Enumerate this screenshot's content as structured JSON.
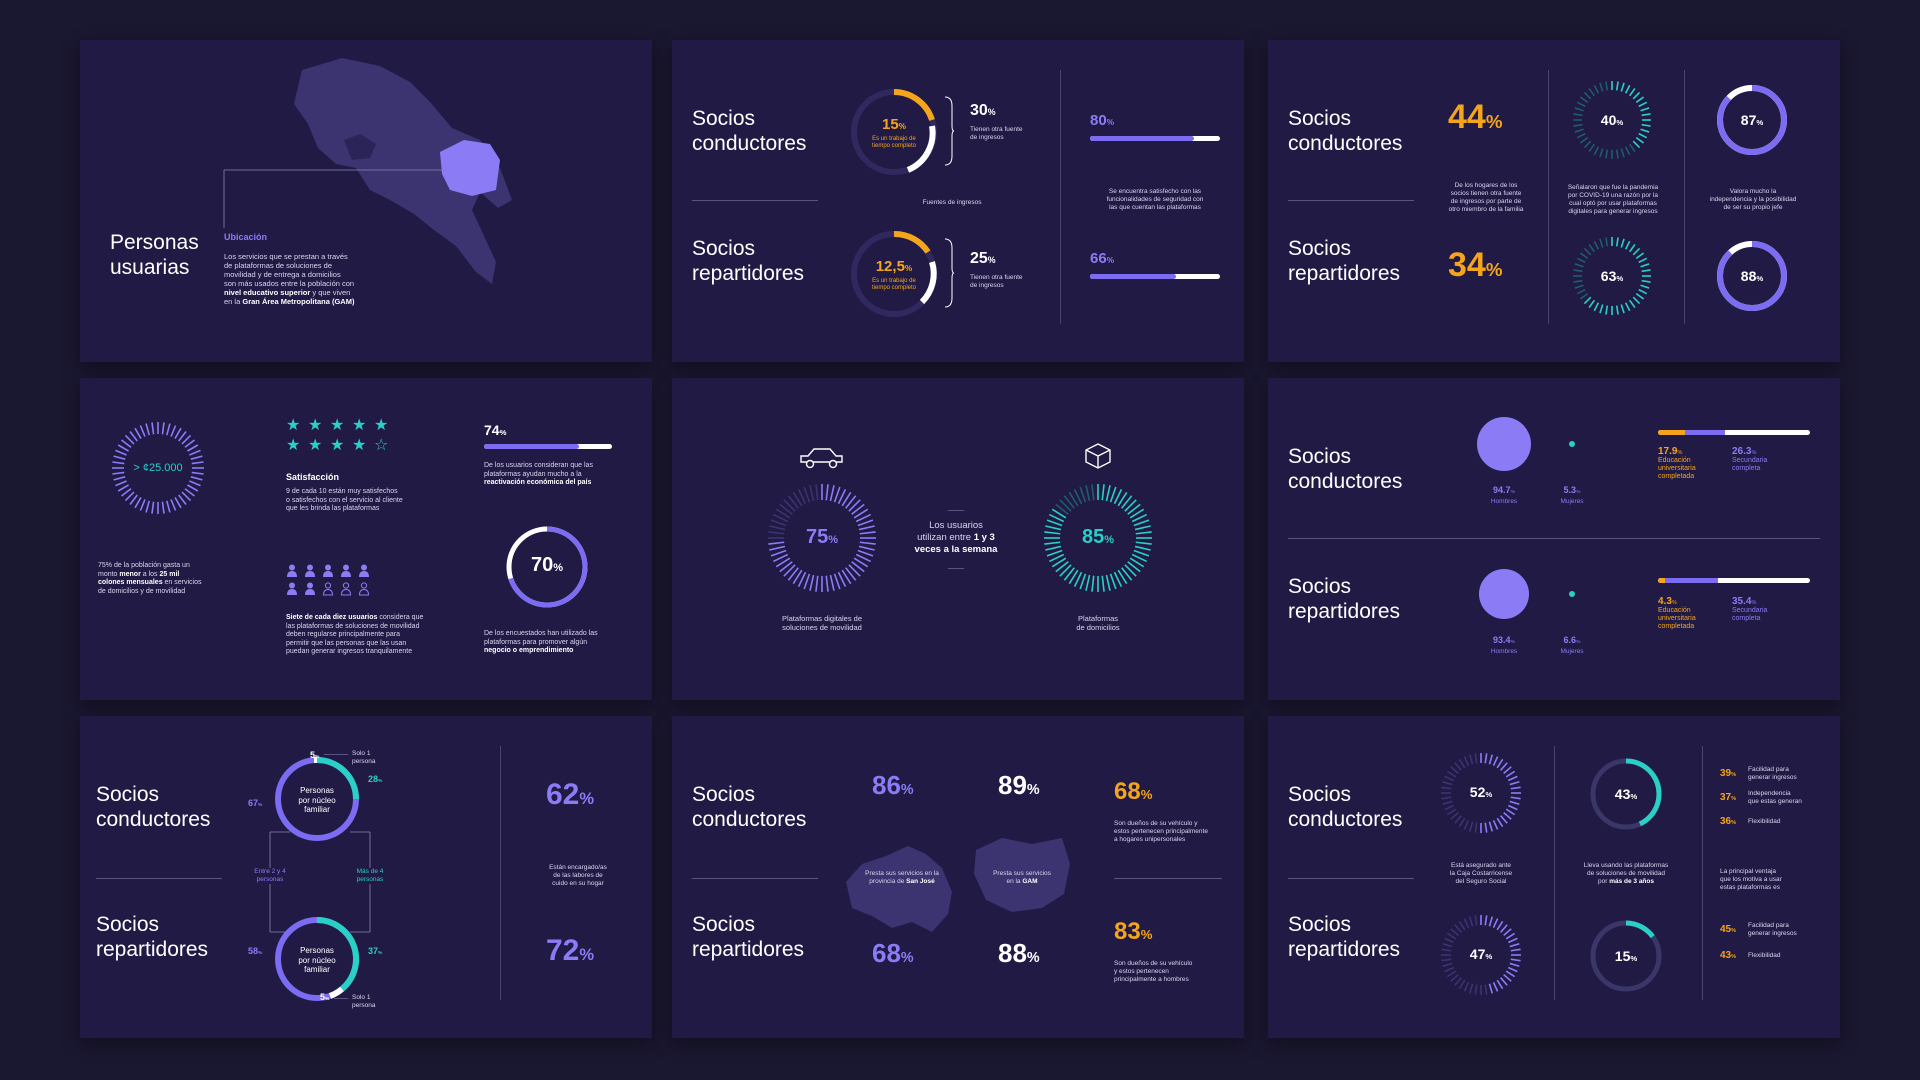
{
  "s1": {
    "title_l1": "Personas",
    "title_l2": "usuarias",
    "ubicacion_label": "Ubicación",
    "desc_1": "Los servicios que se prestan a través",
    "desc_2": "de plataformas de soluciones de",
    "desc_3": "movilidad y de entrega a domicilios",
    "desc_4": "son más usados entre la población con",
    "desc_5_b": "nivel educativo superior",
    "desc_5_r": " y que viven",
    "desc_6_r": "en la ",
    "desc_6_b": "Gran Área Metropolitana (GAM)"
  },
  "s2": {
    "row1_l1": "Socios",
    "row1_l2": "conductores",
    "row2_l1": "Socios",
    "row2_l2": "repartidores",
    "r1_ring_val": "15",
    "r1_ring_unit": "%",
    "r1_ring_sub1": "Es un trabajo de",
    "r1_ring_sub2": "tiempo completo",
    "r1_side_val": "30",
    "r1_side_unit": "%",
    "r1_side_sub1": "Tienen otra fuente",
    "r1_side_sub2": "de ingresos",
    "r2_ring_val": "12,5",
    "r2_ring_unit": "%",
    "r2_ring_sub1": "Es un trabajo de",
    "r2_ring_sub2": "tiempo completo",
    "r2_side_val": "25",
    "r2_side_unit": "%",
    "r2_side_sub1": "Tienen otra fuente",
    "r2_side_sub2": "de ingresos",
    "mid_caption": "Fuentes de ingresos",
    "bar1_val": "80",
    "bar1_unit": "%",
    "bar1_fraction": 0.8,
    "bar_caption_1": "Se encuentra satisfecho con las",
    "bar_caption_2": "funcionalidades de seguridad con",
    "bar_caption_3": "las que cuentan las plataformas",
    "bar2_val": "66",
    "bar2_unit": "%",
    "bar2_fraction": 0.66
  },
  "s3": {
    "row1_l1": "Socios",
    "row1_l2": "conductores",
    "row2_l1": "Socios",
    "row2_l2": "repartidores",
    "big1_val": "44",
    "big1_unit": "%",
    "big2_val": "34",
    "big2_unit": "%",
    "cap_a_1": "De los hogares de los",
    "cap_a_2": "socios tienen otra fuente",
    "cap_a_3": "de ingresos por parte de",
    "cap_a_4": "otro miembro de la familia",
    "tick1_val": "40",
    "tick1_unit": "%",
    "tick2_val": "63",
    "tick2_unit": "%",
    "cap_b_1": "Señalaron que fue la pandemia",
    "cap_b_2": "por COVID-19 una razón por la",
    "cap_b_3": "cual optó por usar plataformas",
    "cap_b_4": "digitales para generar ingresos",
    "ring1_val": "87",
    "ring1_unit": "%",
    "ring1_fraction": 0.87,
    "ring2_val": "88",
    "ring2_unit": "%",
    "ring2_fraction": 0.88,
    "cap_c_1": "Valora mucho la",
    "cap_c_2": "independencia y la posibilidad",
    "cap_c_3": "de ser su propio jefe"
  },
  "s4": {
    "tick_center": "> ¢25.000",
    "cap_a_1": "75% de la población gasta un",
    "cap_a_2_r": "monto ",
    "cap_a_2_b1": "menor",
    "cap_a_2_r2": " a los ",
    "cap_a_2_b2": "25 mil",
    "cap_a_3_b": "colones mensuales",
    "cap_a_3_r": " en servicios",
    "cap_a_4": "de domicilios y de movilidad",
    "stars_filled": 9,
    "stars_total": 10,
    "sat_label": "Satisfacción",
    "sat_1": "9 de cada 10 están muy satisfechos",
    "sat_2": "o satisfechos con el servicio al cliente",
    "sat_3": "que les brinda las plataformas",
    "people_filled": 7,
    "people_total": 10,
    "reg_1_b": "Siete de cada diez usuarios",
    "reg_1_r": " considera que",
    "reg_2": "las plataformas de soluciones de movilidad",
    "reg_3": "deben regularse principalmente para",
    "reg_4": "permitir que las personas que las usan",
    "reg_5": "puedan generar ingresos tranquilamente",
    "bar_val": "74",
    "bar_unit": "%",
    "bar_fraction": 0.74,
    "bar_cap_1": "De los usuarios consideran que las",
    "bar_cap_2": "plataformas ayudan mucho a la",
    "bar_cap_3_b": "reactivación económica del país",
    "ring_val": "70",
    "ring_unit": "%",
    "ring_fraction": 0.7,
    "ring_cap_1": "De los encuestados han utilizado las",
    "ring_cap_2": "plataformas para promover algún",
    "ring_cap_3_b": "negocio o emprendimiento"
  },
  "s5": {
    "left_val": "75",
    "left_unit": "%",
    "left_fraction": 0.75,
    "left_cap_1": "Plataformas digitales de",
    "left_cap_2": "soluciones de movilidad",
    "mid_1": "Los usuarios",
    "mid_2_r": "utilizan entre ",
    "mid_2_b": "1 y 3",
    "mid_3_b": "veces a la semana",
    "right_val": "85",
    "right_unit": "%",
    "right_fraction": 0.85,
    "right_cap_1": "Plataformas",
    "right_cap_2": "de domicilios"
  },
  "s6": {
    "row1_l1": "Socios",
    "row1_l2": "conductores",
    "row2_l1": "Socios",
    "row2_l2": "repartidores",
    "r1_h_val": "94.7",
    "r1_h_unit": "%",
    "r1_h_lbl": "Hombres",
    "r1_m_val": "5.3",
    "r1_m_unit": "%",
    "r1_m_lbl": "Mujeres",
    "r1_edu_val": "17.9",
    "r1_edu_unit": "%",
    "r1_edu_fraction": 0.179,
    "r1_edu_1": "Educación",
    "r1_edu_2": "universitaria",
    "r1_edu_3": "completada",
    "r1_sec_val": "26.3",
    "r1_sec_unit": "%",
    "r1_sec_fraction": 0.263,
    "r1_sec_1": "Secundaria",
    "r1_sec_2": "completa",
    "r2_h_val": "93.4",
    "r2_h_unit": "%",
    "r2_h_lbl": "Hombres",
    "r2_m_val": "6.6",
    "r2_m_unit": "%",
    "r2_m_lbl": "Mujeres",
    "r2_edu_val": "4.3",
    "r2_edu_unit": "%",
    "r2_edu_fraction": 0.043,
    "r2_edu_1": "Educación",
    "r2_edu_2": "universitaria",
    "r2_edu_3": "completada",
    "r2_sec_val": "35.4",
    "r2_sec_unit": "%",
    "r2_sec_fraction": 0.354,
    "r2_sec_1": "Secundaria",
    "r2_sec_2": "completa"
  },
  "s7": {
    "row1_l1": "Socios",
    "row1_l2": "conductores",
    "row2_l1": "Socios",
    "row2_l2": "repartidores",
    "ring_label_1": "Personas",
    "ring_label_2": "por núcleo",
    "ring_label_3": "familiar",
    "top_solo_val": "5",
    "top_solo_unit": "%",
    "top_solo_1": "Solo 1",
    "top_solo_2": "persona",
    "top_2a4_val": "67",
    "top_2a4_unit": "%",
    "top_4mas_val": "28",
    "top_4mas_unit": "%",
    "mid_left_1": "Entre 2 y 4",
    "mid_left_2": "personas",
    "mid_right_1": "Más de 4",
    "mid_right_2": "personas",
    "bot_2a4_val": "58",
    "bot_2a4_unit": "%",
    "bot_4mas_val": "37",
    "bot_4mas_unit": "%",
    "bot_solo_val": "5",
    "bot_solo_unit": "%",
    "bot_solo_1": "Solo 1",
    "bot_solo_2": "persona",
    "big1_val": "62",
    "big1_unit": "%",
    "big2_val": "72",
    "big2_unit": "%",
    "cap_1": "Están encargado/as",
    "cap_2": "de las labores de",
    "cap_3": "cuido en su hogar"
  },
  "s8": {
    "row1_l1": "Socios",
    "row1_l2": "conductores",
    "row2_l1": "Socios",
    "row2_l2": "repartidores",
    "a1_val": "86",
    "a1_unit": "%",
    "b1_val": "89",
    "b1_unit": "%",
    "a2_val": "68",
    "a2_unit": "%",
    "b2_val": "88",
    "b2_unit": "%",
    "map_a_1": "Presta sus servicios en la",
    "map_a_2_r": "provincia de ",
    "map_a_2_b": "San José",
    "map_b_1": "Presta sus servicios",
    "map_b_2_r": "en la ",
    "map_b_2_b": "GAM",
    "y1_val": "68",
    "y1_unit": "%",
    "y1_cap_1": "Son dueños de su vehículo y",
    "y1_cap_2": "estos pertenecen principalmente",
    "y1_cap_3": "a hogares unipersonales",
    "y2_val": "83",
    "y2_unit": "%",
    "y2_cap_1": "Son dueños de su vehículo",
    "y2_cap_2": "y estos pertenecen",
    "y2_cap_3": "principalmente a hombres"
  },
  "s9": {
    "row1_l1": "Socios",
    "row1_l2": "conductores",
    "row2_l1": "Socios",
    "row2_l2": "repartidores",
    "tick1_val": "52",
    "tick1_unit": "%",
    "tick2_val": "47",
    "tick2_unit": "%",
    "cap_a_1": "Está asegurado ante",
    "cap_a_2": "la Caja Costarricense",
    "cap_a_3": "del Seguro Social",
    "ring1_val": "43",
    "ring1_unit": "%",
    "ring1_fraction": 0.43,
    "ring2_val": "15",
    "ring2_unit": "%",
    "ring2_fraction": 0.15,
    "cap_b_1": "Lleva usando las plataformas",
    "cap_b_2": "de soluciones de movilidad",
    "cap_b_3_r": "por ",
    "cap_b_3_b": "más de 3 años",
    "l1_val": "39",
    "l1_unit": "%",
    "l1_1": "Facilidad para",
    "l1_2": "generar ingresos",
    "l2_val": "37",
    "l2_unit": "%",
    "l2_1": "Independencia",
    "l2_2": "que estas generan",
    "l3_val": "36",
    "l3_unit": "%",
    "l3_1": "Flexibilidad",
    "mid_1": "La principal ventaja",
    "mid_2": "que los motiva a usar",
    "mid_3": "estas plataformas es",
    "l4_val": "45",
    "l4_unit": "%",
    "l4_1": "Facilidad para",
    "l4_2": "generar ingresos",
    "l5_val": "43",
    "l5_unit": "%",
    "l5_1": "Flexibilidad"
  },
  "colors": {
    "bg": "#1a1730",
    "card": "#201a45",
    "purple": "#7b6cf2",
    "yellow": "#f5a51b",
    "teal": "#2ad0c6",
    "white": "#ffffff"
  }
}
